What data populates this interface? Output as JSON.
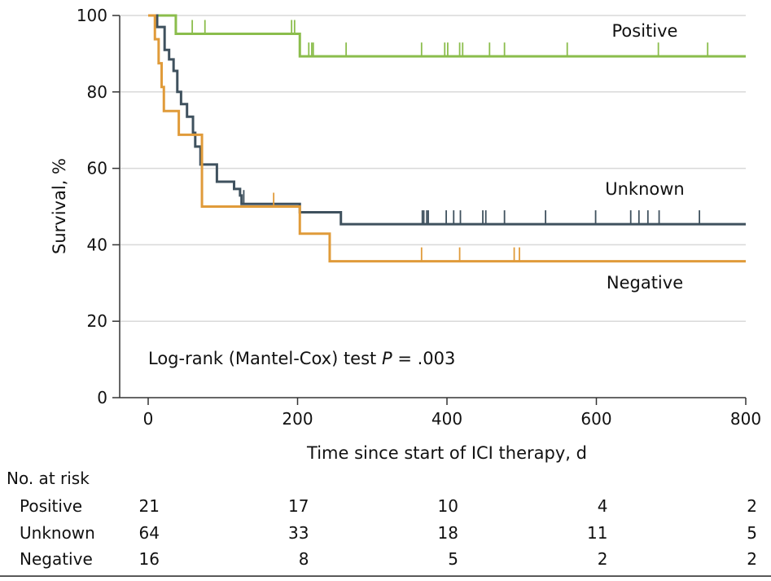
{
  "chart_data": {
    "type": "line",
    "subtype": "kaplan-meier",
    "xlabel": "Time since start of ICI therapy, d",
    "ylabel": "Survival, %",
    "xlim": [
      0,
      800
    ],
    "ylim": [
      0,
      100
    ],
    "xticks": [
      "0",
      "200",
      "400",
      "600",
      "800"
    ],
    "yticks": [
      "0",
      "20",
      "40",
      "60",
      "80",
      "100"
    ],
    "grid": "horizontal",
    "annotation": {
      "prefix": "Log-rank (Mantel-Cox) test ",
      "p_symbol": "P",
      "suffix": " = .003"
    },
    "series": [
      {
        "name": "Positive",
        "color": "#8bbd4c",
        "steps": [
          [
            0,
            100
          ],
          [
            37,
            95.2
          ],
          [
            203,
            89.3
          ],
          [
            800,
            89.3
          ]
        ],
        "censored": [
          59,
          76,
          192,
          196,
          215,
          219,
          221,
          265,
          366,
          397,
          401,
          417,
          421,
          457,
          477,
          561,
          683,
          749
        ]
      },
      {
        "name": "Unknown",
        "color": "#3f515e",
        "steps": [
          [
            0,
            100
          ],
          [
            12,
            97
          ],
          [
            22,
            91
          ],
          [
            28,
            88.5
          ],
          [
            34,
            85.5
          ],
          [
            39,
            80
          ],
          [
            44,
            76.8
          ],
          [
            52,
            73.5
          ],
          [
            60,
            69.3
          ],
          [
            63,
            65.7
          ],
          [
            70,
            61
          ],
          [
            92,
            56.5
          ],
          [
            115,
            54.6
          ],
          [
            123,
            52.9
          ],
          [
            125,
            50.7
          ],
          [
            203,
            48.5
          ],
          [
            258,
            45.4
          ],
          [
            800,
            45.4
          ]
        ],
        "censored": [
          128,
          367,
          369,
          373,
          375,
          399,
          409,
          418,
          448,
          452,
          477,
          532,
          599,
          646,
          657,
          669,
          684,
          738
        ]
      },
      {
        "name": "Negative",
        "color": "#e09b3a",
        "steps": [
          [
            0,
            100
          ],
          [
            9,
            93.8
          ],
          [
            14,
            87.5
          ],
          [
            18,
            81.3
          ],
          [
            21,
            75
          ],
          [
            41,
            68.8
          ],
          [
            72,
            50
          ],
          [
            203,
            42.9
          ],
          [
            243,
            35.7
          ],
          [
            800,
            35.7
          ]
        ],
        "censored": [
          168,
          366,
          417,
          490,
          497
        ]
      }
    ],
    "risk_table": {
      "title": "No. at risk",
      "times": [
        0,
        200,
        400,
        600,
        800
      ],
      "rows": [
        {
          "name": "Positive",
          "values": [
            "21",
            "17",
            "10",
            "4",
            "2"
          ]
        },
        {
          "name": "Unknown",
          "values": [
            "64",
            "33",
            "18",
            "11",
            "5"
          ]
        },
        {
          "name": "Negative",
          "values": [
            "16",
            "8",
            "5",
            "2",
            "2"
          ]
        }
      ]
    }
  }
}
